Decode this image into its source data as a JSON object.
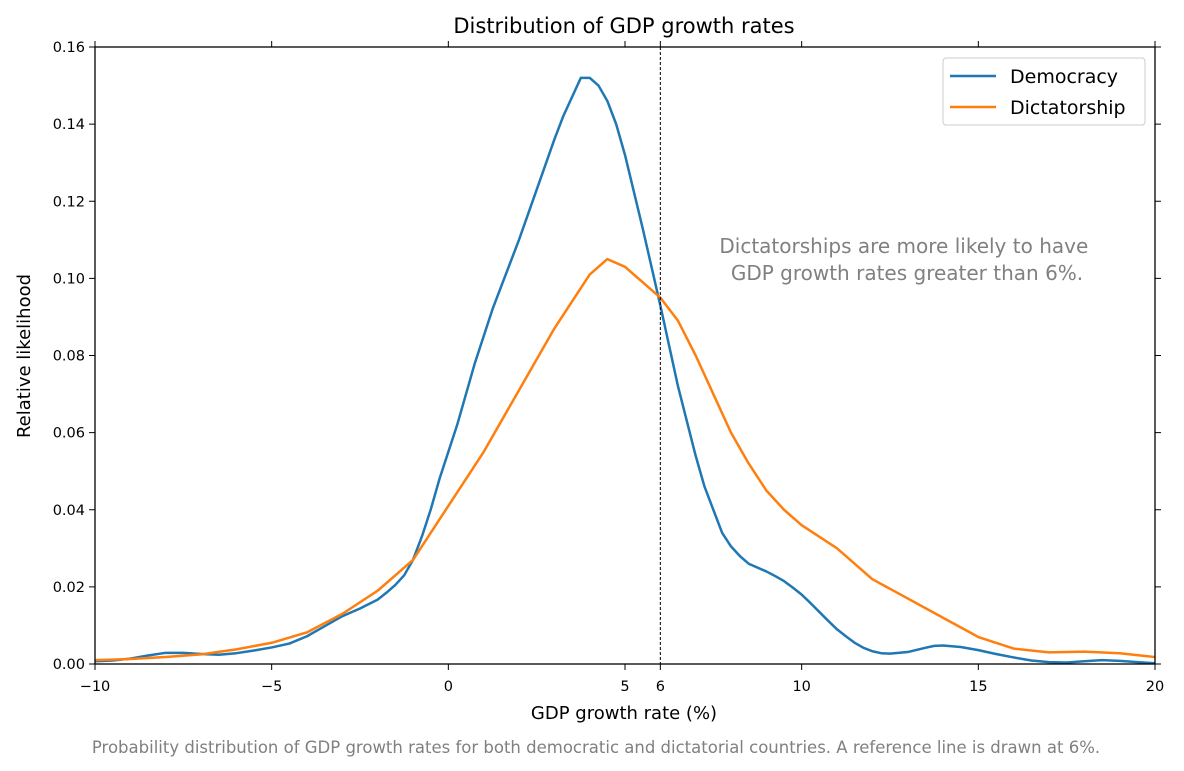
{
  "chart_data": {
    "type": "line",
    "title": "Distribution of GDP growth rates",
    "xlabel": "GDP growth rate (%)",
    "ylabel": "Relative likelihood",
    "caption": "Probability distribution of GDP growth rates for both democratic and dictatorial countries. A reference line is drawn at 6%.",
    "annotation": [
      "Dictatorships are more likely to have",
      "GDP growth rates greater than 6%."
    ],
    "xlim": [
      -10,
      20
    ],
    "ylim": [
      0,
      0.16
    ],
    "xticks": [
      -10,
      -5,
      0,
      5,
      6,
      10,
      15,
      20
    ],
    "xtick_labels": [
      "−10",
      "−5",
      "0",
      "5",
      "6",
      "10",
      "15",
      "20"
    ],
    "yticks": [
      0,
      0.02,
      0.04,
      0.06,
      0.08,
      0.1,
      0.12,
      0.14,
      0.16
    ],
    "ytick_labels": [
      "0.00",
      "0.02",
      "0.04",
      "0.06",
      "0.08",
      "0.10",
      "0.12",
      "0.14",
      "0.16"
    ],
    "reference_line_x": 6,
    "legend_position": "top-right",
    "grid": false,
    "series": [
      {
        "name": "Democracy",
        "color": "#1f77b4",
        "x": [
          -10,
          -9.5,
          -9,
          -8.5,
          -8,
          -7.5,
          -7,
          -6.5,
          -6,
          -5.5,
          -5,
          -4.5,
          -4,
          -3.5,
          -3,
          -2.5,
          -2,
          -1.75,
          -1.5,
          -1.25,
          -1,
          -0.75,
          -0.5,
          -0.25,
          0,
          0.25,
          0.5,
          0.75,
          1,
          1.25,
          1.5,
          2,
          2.5,
          3,
          3.25,
          3.5,
          3.75,
          4,
          4.25,
          4.5,
          4.75,
          5,
          5.5,
          6,
          6.5,
          7,
          7.25,
          7.5,
          7.75,
          8,
          8.25,
          8.5,
          9,
          9.25,
          9.5,
          9.75,
          10,
          10.25,
          10.5,
          10.75,
          11,
          11.25,
          11.5,
          11.75,
          12,
          12.25,
          12.5,
          13,
          13.5,
          13.75,
          14,
          14.5,
          15,
          15.5,
          16,
          16.5,
          17,
          17.5,
          18,
          18.5,
          19,
          19.5,
          20
        ],
        "y": [
          0.0007,
          0.0009,
          0.0014,
          0.0022,
          0.0029,
          0.0029,
          0.0026,
          0.0024,
          0.0028,
          0.0035,
          0.0043,
          0.0053,
          0.0072,
          0.0098,
          0.0124,
          0.0144,
          0.0167,
          0.0185,
          0.0205,
          0.023,
          0.027,
          0.033,
          0.04,
          0.048,
          0.055,
          0.062,
          0.07,
          0.078,
          0.085,
          0.092,
          0.098,
          0.11,
          0.123,
          0.136,
          0.142,
          0.147,
          0.152,
          0.152,
          0.15,
          0.146,
          0.14,
          0.132,
          0.113,
          0.093,
          0.072,
          0.054,
          0.046,
          0.04,
          0.034,
          0.0305,
          0.028,
          0.026,
          0.024,
          0.0228,
          0.0215,
          0.0198,
          0.018,
          0.0158,
          0.0135,
          0.0112,
          0.009,
          0.0072,
          0.0055,
          0.0042,
          0.0033,
          0.0028,
          0.0027,
          0.0031,
          0.0042,
          0.0047,
          0.0048,
          0.0044,
          0.0036,
          0.0026,
          0.0017,
          0.0009,
          0.0005,
          0.0004,
          0.0007,
          0.001,
          0.0008,
          0.0005,
          0.0002
        ]
      },
      {
        "name": "Dictatorship",
        "color": "#ff7f0e",
        "x": [
          -10,
          -9,
          -8,
          -7,
          -6,
          -5,
          -4,
          -3,
          -2,
          -1,
          0,
          1,
          2,
          3,
          3.5,
          4,
          4.5,
          5,
          5.5,
          6,
          6.5,
          7,
          7.5,
          8,
          8.5,
          9,
          9.5,
          10,
          11,
          12,
          13,
          14,
          15,
          16,
          17,
          18,
          19,
          20
        ],
        "y": [
          0.001,
          0.0013,
          0.0018,
          0.0025,
          0.0038,
          0.0055,
          0.0082,
          0.013,
          0.019,
          0.027,
          0.041,
          0.055,
          0.071,
          0.087,
          0.094,
          0.101,
          0.105,
          0.103,
          0.099,
          0.095,
          0.089,
          0.08,
          0.07,
          0.06,
          0.052,
          0.045,
          0.04,
          0.036,
          0.03,
          0.022,
          0.017,
          0.012,
          0.007,
          0.004,
          0.003,
          0.0032,
          0.0028,
          0.0018
        ]
      }
    ]
  }
}
